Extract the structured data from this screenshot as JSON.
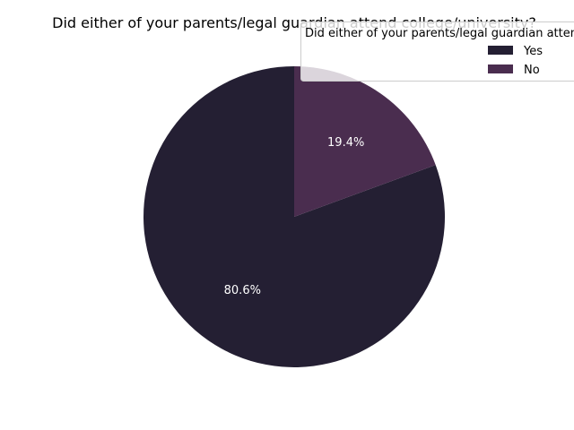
{
  "chart_data": {
    "type": "pie",
    "title": "Did either of your parents/legal guardian attend college/university?",
    "categories": [
      "Yes",
      "No"
    ],
    "values": [
      80.6,
      19.4
    ],
    "labels": [
      "80.6%",
      "19.4%"
    ],
    "colors": [
      "#241f33",
      "#4a2d4f"
    ],
    "start_angle": 90,
    "direction": "counterclockwise",
    "legend": {
      "title": "Did either of your parents/legal guardian attend college/university?",
      "placement": "top-right",
      "entries": [
        "Yes",
        "No"
      ]
    }
  }
}
